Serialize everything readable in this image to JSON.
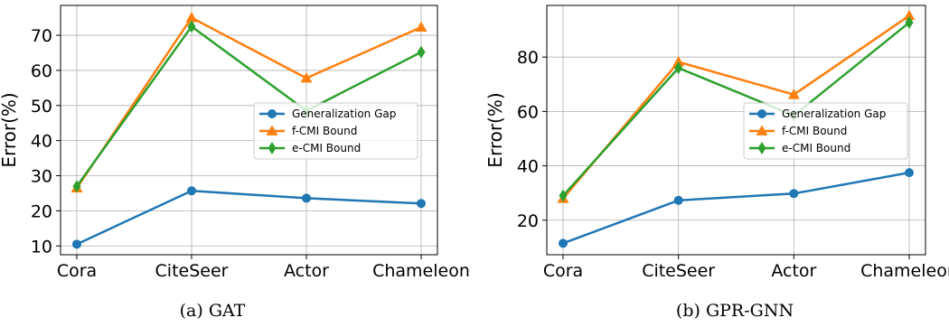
{
  "chart_data": [
    {
      "type": "line",
      "caption": "(a)  GAT",
      "categories": [
        "Cora",
        "CiteSeer",
        "Actor",
        "Chameleon"
      ],
      "ylabel": "Error(%)",
      "ylim": [
        7.5,
        78.5
      ],
      "yticks": [
        10,
        20,
        30,
        40,
        50,
        60,
        70
      ],
      "grid": true,
      "legend_position": "center-right",
      "series": [
        {
          "name": "Generalization Gap",
          "color": "#1f77b4",
          "marker": "circle",
          "values": [
            10.5,
            25.7,
            23.6,
            22.1
          ]
        },
        {
          "name": "f-CMI Bound",
          "color": "#ff7f0e",
          "marker": "triangle",
          "values": [
            26.5,
            75.0,
            57.8,
            72.3
          ]
        },
        {
          "name": "e-CMI Bound",
          "color": "#2ca02c",
          "marker": "diamond",
          "values": [
            27.0,
            72.5,
            48.5,
            65.2
          ]
        }
      ]
    },
    {
      "type": "line",
      "caption": "(b)  GPR-GNN",
      "categories": [
        "Cora",
        "CiteSeer",
        "Actor",
        "Chameleon"
      ],
      "ylabel": "Error(%)",
      "ylim": [
        7.3,
        99.0
      ],
      "yticks": [
        20,
        40,
        60,
        80
      ],
      "grid": true,
      "legend_position": "center-right",
      "series": [
        {
          "name": "Generalization Gap",
          "color": "#1f77b4",
          "marker": "circle",
          "values": [
            11.5,
            27.3,
            29.8,
            37.5
          ]
        },
        {
          "name": "f-CMI Bound",
          "color": "#ff7f0e",
          "marker": "triangle",
          "values": [
            28.0,
            78.2,
            66.2,
            95.2
          ]
        },
        {
          "name": "e-CMI Bound",
          "color": "#2ca02c",
          "marker": "diamond",
          "values": [
            29.0,
            76.0,
            58.5,
            92.7
          ]
        }
      ]
    }
  ]
}
